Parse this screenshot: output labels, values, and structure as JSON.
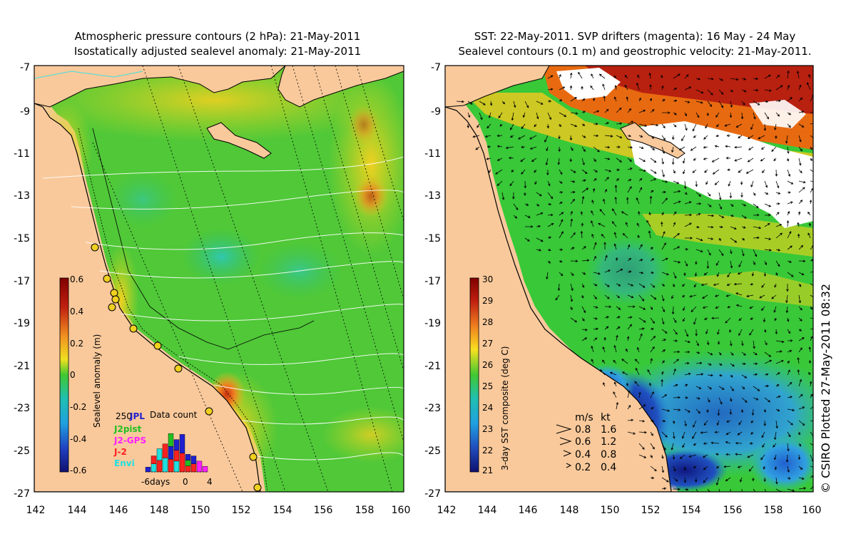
{
  "left_panel": {
    "title_line1": "Atmospheric pressure contours (2 hPa): 21-May-2011",
    "title_line2": "Isostatically adjusted sealevel anomaly: 21-May-2011",
    "x_ticks": [
      "142",
      "144",
      "146",
      "148",
      "150",
      "152",
      "154",
      "156",
      "158",
      "160"
    ],
    "y_ticks": [
      "-7",
      "-9",
      "-11",
      "-13",
      "-15",
      "-17",
      "-19",
      "-21",
      "-23",
      "-25",
      "-27"
    ],
    "colorbar": {
      "label": "Sealevel anomaly (m)",
      "ticks": [
        "0.6",
        "0.4",
        "0.2",
        "0",
        "-0.2",
        "-0.4",
        "-0.6"
      ]
    },
    "legend": {
      "count_value": "250",
      "title": "Data count",
      "entries": [
        {
          "label": "JPL",
          "color": "#2020d0"
        },
        {
          "label": "J2pist",
          "color": "#20c020"
        },
        {
          "label": "J2-GPS",
          "color": "#ff20ff"
        },
        {
          "label": "J-2",
          "color": "#ff2020"
        },
        {
          "label": "Envi",
          "color": "#20e0e0"
        }
      ],
      "x_labels": [
        "-6days",
        "0",
        "4"
      ],
      "bar_counts": [
        12,
        40,
        58,
        70,
        96,
        81,
        94,
        44,
        40,
        27,
        14
      ]
    }
  },
  "right_panel": {
    "title_line1": "SST: 22-May-2011. SVP drifters (magenta): 16 May - 24 May",
    "title_line2": "Sealevel contours (0.1 m) and geostrophic velocity: 21-May-2011.",
    "x_ticks": [
      "142",
      "144",
      "146",
      "148",
      "150",
      "152",
      "154",
      "156",
      "158",
      "160"
    ],
    "y_ticks": [
      "-7",
      "-9",
      "-11",
      "-13",
      "-15",
      "-17",
      "-19",
      "-21",
      "-23",
      "-25",
      "-27"
    ],
    "colorbar": {
      "label": "3-day SST composite (deg C)",
      "ticks": [
        "30",
        "29",
        "28",
        "27",
        "26",
        "25",
        "24",
        "23",
        "22",
        "21"
      ]
    },
    "velocity_key": {
      "header_ms": "m/s",
      "header_kt": "kt",
      "rows": [
        {
          "ms": "0.8",
          "kt": "1.6"
        },
        {
          "ms": "0.6",
          "kt": "1.2"
        },
        {
          "ms": "0.4",
          "kt": "0.8"
        },
        {
          "ms": "0.2",
          "kt": "0.4"
        }
      ]
    }
  },
  "credit": "© CSIRO Plotted 27-May-2011 08:32",
  "colors": {
    "land": "#f9c99b",
    "sla_green": "#38c830",
    "sst_green": "#30c040",
    "sst_red": "#b01808"
  }
}
